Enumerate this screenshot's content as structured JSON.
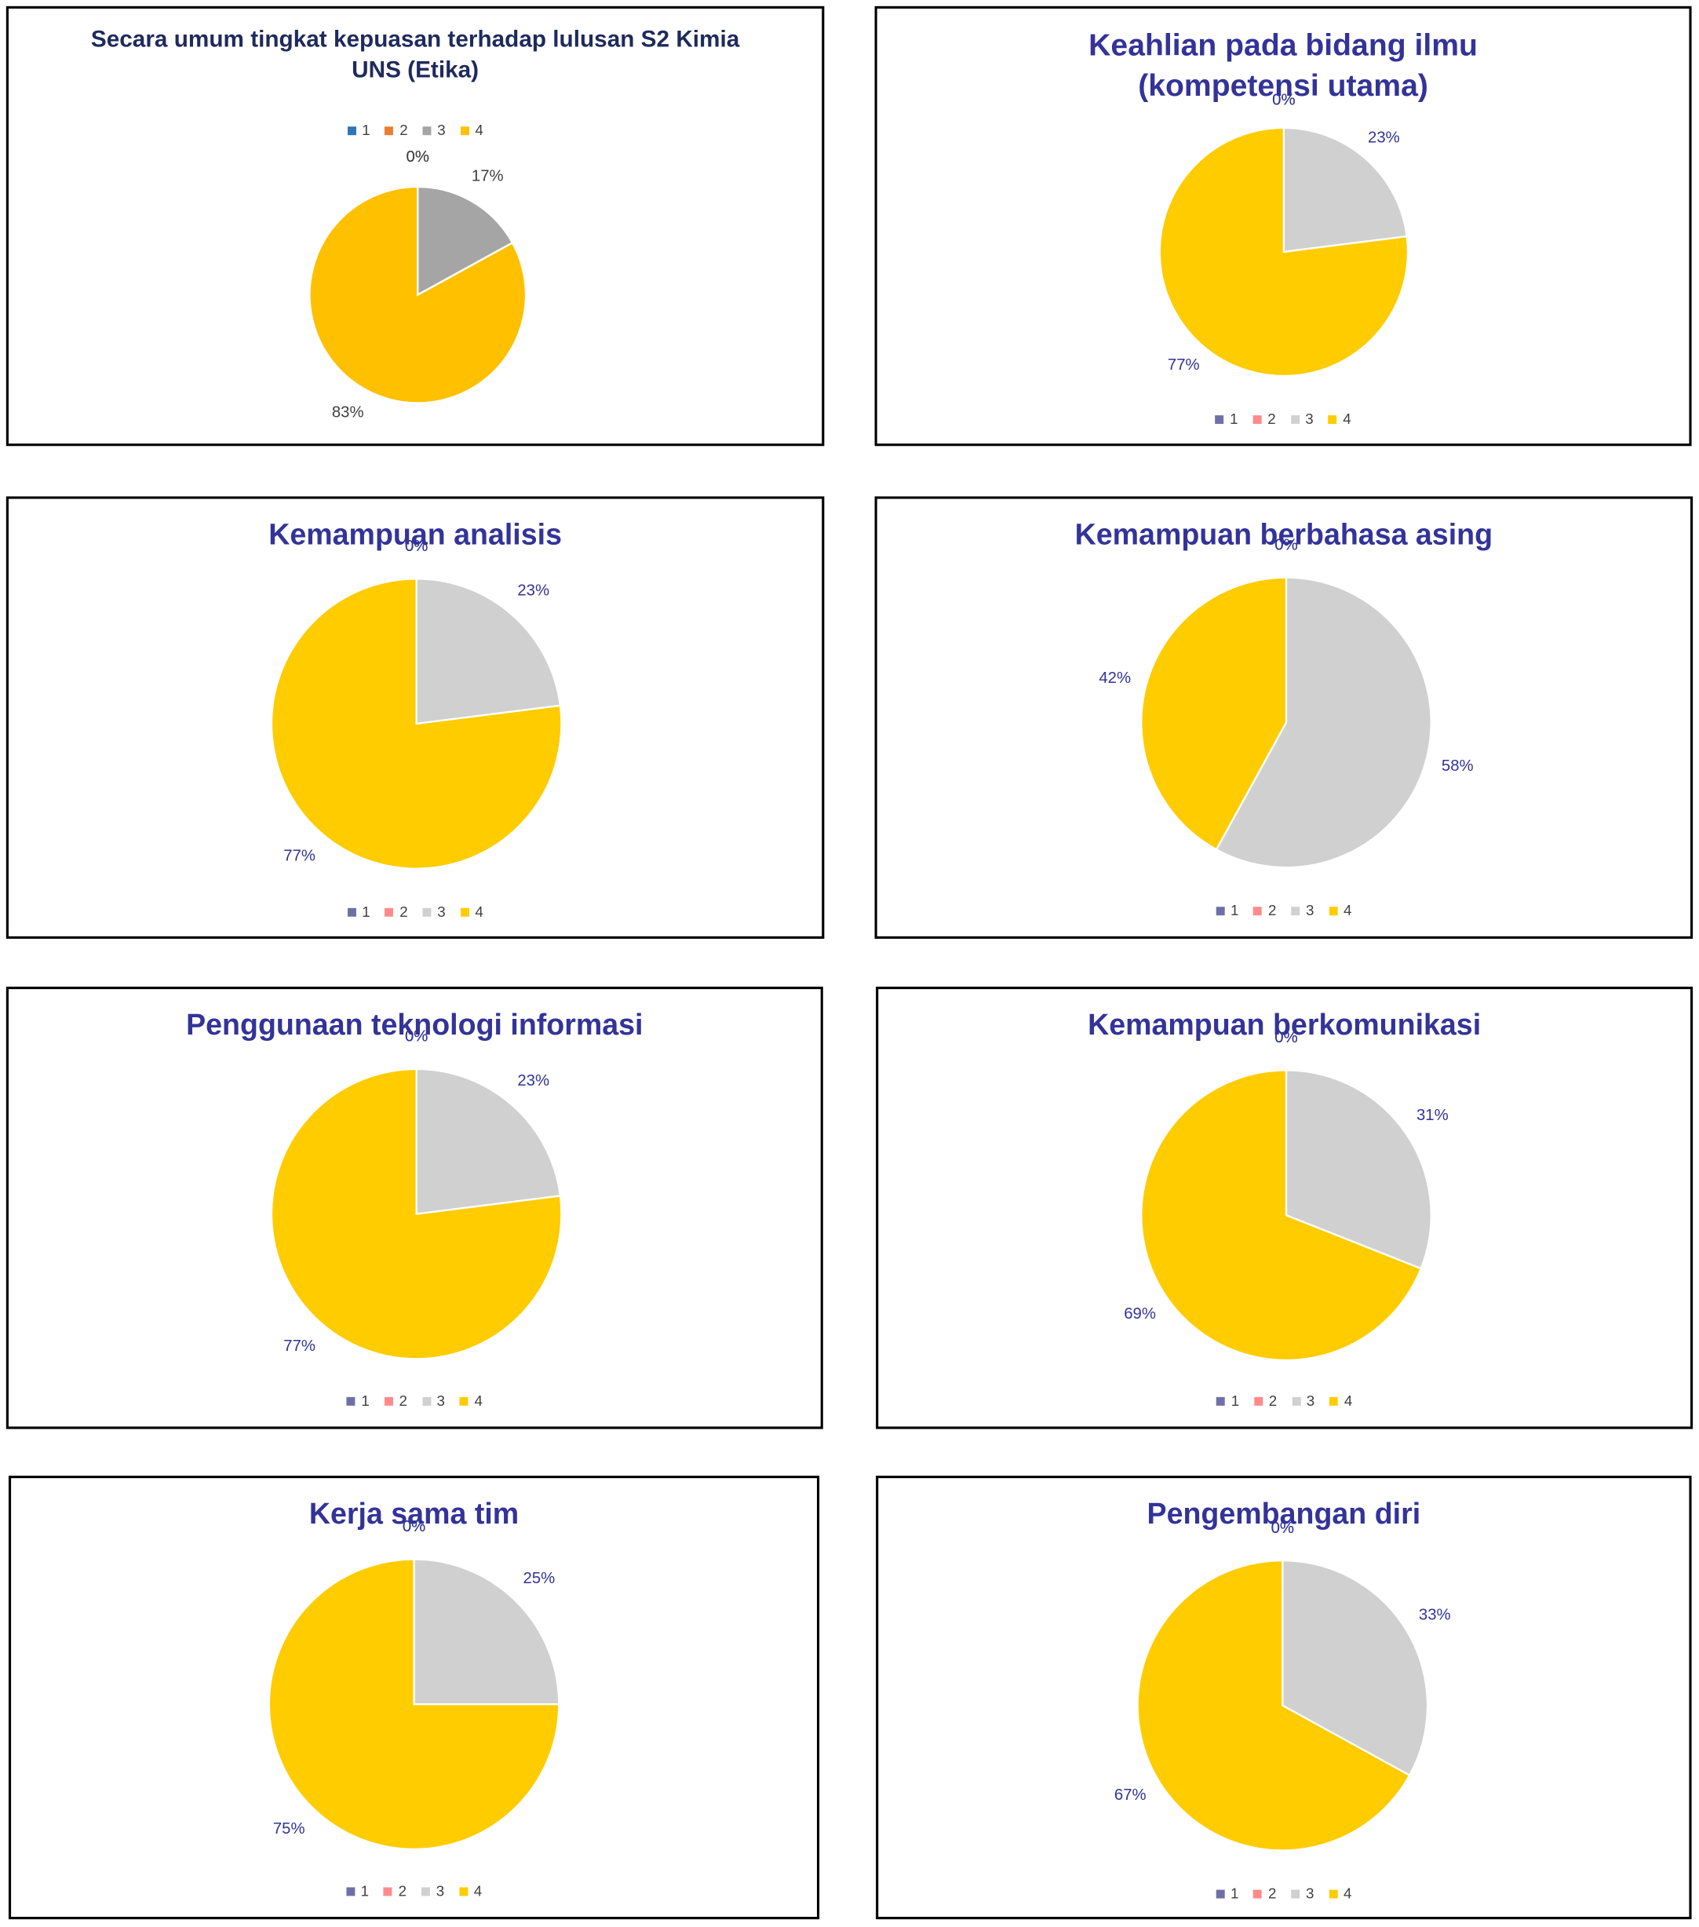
{
  "chart_data": [
    {
      "type": "pie",
      "title": "Secara umum tingkat kepuasan terhadap lulusan S2 Kimia UNS (Etika)",
      "categories": [
        "1",
        "2",
        "3",
        "4"
      ],
      "values": [
        0,
        0,
        17,
        83
      ],
      "value_labels": [
        "0%",
        "0%",
        "17%",
        "83%"
      ],
      "colors": [
        "#2e75b6",
        "#ed7d31",
        "#a5a5a5",
        "#ffc000"
      ],
      "legend": "top"
    },
    {
      "type": "pie",
      "title": "Keahlian pada bidang ilmu (kompetensi utama)",
      "categories": [
        "1",
        "2",
        "3",
        "4"
      ],
      "values": [
        0,
        0,
        23,
        77
      ],
      "value_labels": [
        "0%",
        "0%",
        "23%",
        "77%"
      ],
      "colors": [
        "#6f6fa8",
        "#ff8a8a",
        "#d0d0d0",
        "#ffcc00"
      ],
      "legend": "bottom"
    },
    {
      "type": "pie",
      "title": "Kemampuan analisis",
      "categories": [
        "1",
        "2",
        "3",
        "4"
      ],
      "values": [
        0,
        0,
        23,
        77
      ],
      "value_labels": [
        "0%",
        "0%",
        "23%",
        "77%"
      ],
      "colors": [
        "#6f6fa8",
        "#ff8a8a",
        "#d0d0d0",
        "#ffcc00"
      ],
      "legend": "bottom"
    },
    {
      "type": "pie",
      "title": "Kemampuan berbahasa asing",
      "categories": [
        "1",
        "2",
        "3",
        "4"
      ],
      "values": [
        0,
        0,
        58,
        42
      ],
      "value_labels": [
        "0%",
        "0%",
        "58%",
        "42%"
      ],
      "colors": [
        "#6f6fa8",
        "#ff8a8a",
        "#d0d0d0",
        "#ffcc00"
      ],
      "legend": "bottom"
    },
    {
      "type": "pie",
      "title": "Penggunaan teknologi informasi",
      "categories": [
        "1",
        "2",
        "3",
        "4"
      ],
      "values": [
        0,
        0,
        23,
        77
      ],
      "value_labels": [
        "0%",
        "0%",
        "23%",
        "77%"
      ],
      "colors": [
        "#6f6fa8",
        "#ff8a8a",
        "#d0d0d0",
        "#ffcc00"
      ],
      "legend": "bottom"
    },
    {
      "type": "pie",
      "title": "Kemampuan berkomunikasi",
      "categories": [
        "1",
        "2",
        "3",
        "4"
      ],
      "values": [
        0,
        0,
        31,
        69
      ],
      "value_labels": [
        "0%",
        "0%",
        "31%",
        "69%"
      ],
      "colors": [
        "#6f6fa8",
        "#ff8a8a",
        "#d0d0d0",
        "#ffcc00"
      ],
      "legend": "bottom"
    },
    {
      "type": "pie",
      "title": "Kerja sama tim",
      "categories": [
        "1",
        "2",
        "3",
        "4"
      ],
      "values": [
        0,
        0,
        25,
        75
      ],
      "value_labels": [
        "0%",
        "0%",
        "25%",
        "75%"
      ],
      "colors": [
        "#6f6fa8",
        "#ff8a8a",
        "#d0d0d0",
        "#ffcc00"
      ],
      "legend": "bottom"
    },
    {
      "type": "pie",
      "title": "Pengembangan diri",
      "categories": [
        "1",
        "2",
        "3",
        "4"
      ],
      "values": [
        0,
        0,
        33,
        67
      ],
      "value_labels": [
        "0%",
        "0%",
        "33%",
        "67%"
      ],
      "colors": [
        "#6f6fa8",
        "#ff8a8a",
        "#d0d0d0",
        "#ffcc00"
      ],
      "legend": "bottom"
    }
  ]
}
